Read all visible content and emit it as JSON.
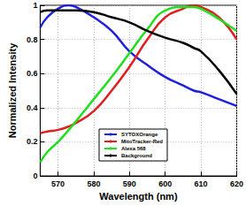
{
  "chart_data": {
    "type": "line",
    "x_label": "Wavelength (nm)",
    "y_label": "Normalized Intensity",
    "x": [
      565,
      567,
      570,
      573,
      575,
      580,
      585,
      590,
      595,
      600,
      605,
      608,
      610,
      615,
      620
    ],
    "series": [
      {
        "name": "SYTOXOrange",
        "color": "#1f1fe0",
        "values": [
          0.87,
          0.93,
          0.98,
          1.0,
          0.99,
          0.93,
          0.85,
          0.73,
          0.65,
          0.58,
          0.53,
          0.5,
          0.49,
          0.45,
          0.41
        ]
      },
      {
        "name": "MitoTracker-Red",
        "color": "#e01f1f",
        "values": [
          0.25,
          0.26,
          0.27,
          0.29,
          0.31,
          0.38,
          0.5,
          0.64,
          0.8,
          0.93,
          0.98,
          1.0,
          0.99,
          0.93,
          0.8
        ]
      },
      {
        "name": "Alexa 568",
        "color": "#1fe01f",
        "values": [
          0.08,
          0.14,
          0.2,
          0.27,
          0.32,
          0.45,
          0.58,
          0.72,
          0.86,
          0.97,
          0.99,
          0.99,
          0.98,
          0.92,
          0.85
        ]
      },
      {
        "name": "Background",
        "color": "#000000",
        "values": [
          0.96,
          0.97,
          0.97,
          0.97,
          0.97,
          0.96,
          0.93,
          0.9,
          0.85,
          0.81,
          0.78,
          0.75,
          0.73,
          0.62,
          0.48
        ]
      }
    ],
    "xlim": [
      565,
      620
    ],
    "xticks": [
      570,
      580,
      590,
      600,
      610,
      620
    ],
    "ylim": [
      0,
      1
    ],
    "yticks": [
      0,
      0.2,
      0.4,
      0.6,
      0.8,
      1
    ],
    "grid": true,
    "legend": "center"
  }
}
